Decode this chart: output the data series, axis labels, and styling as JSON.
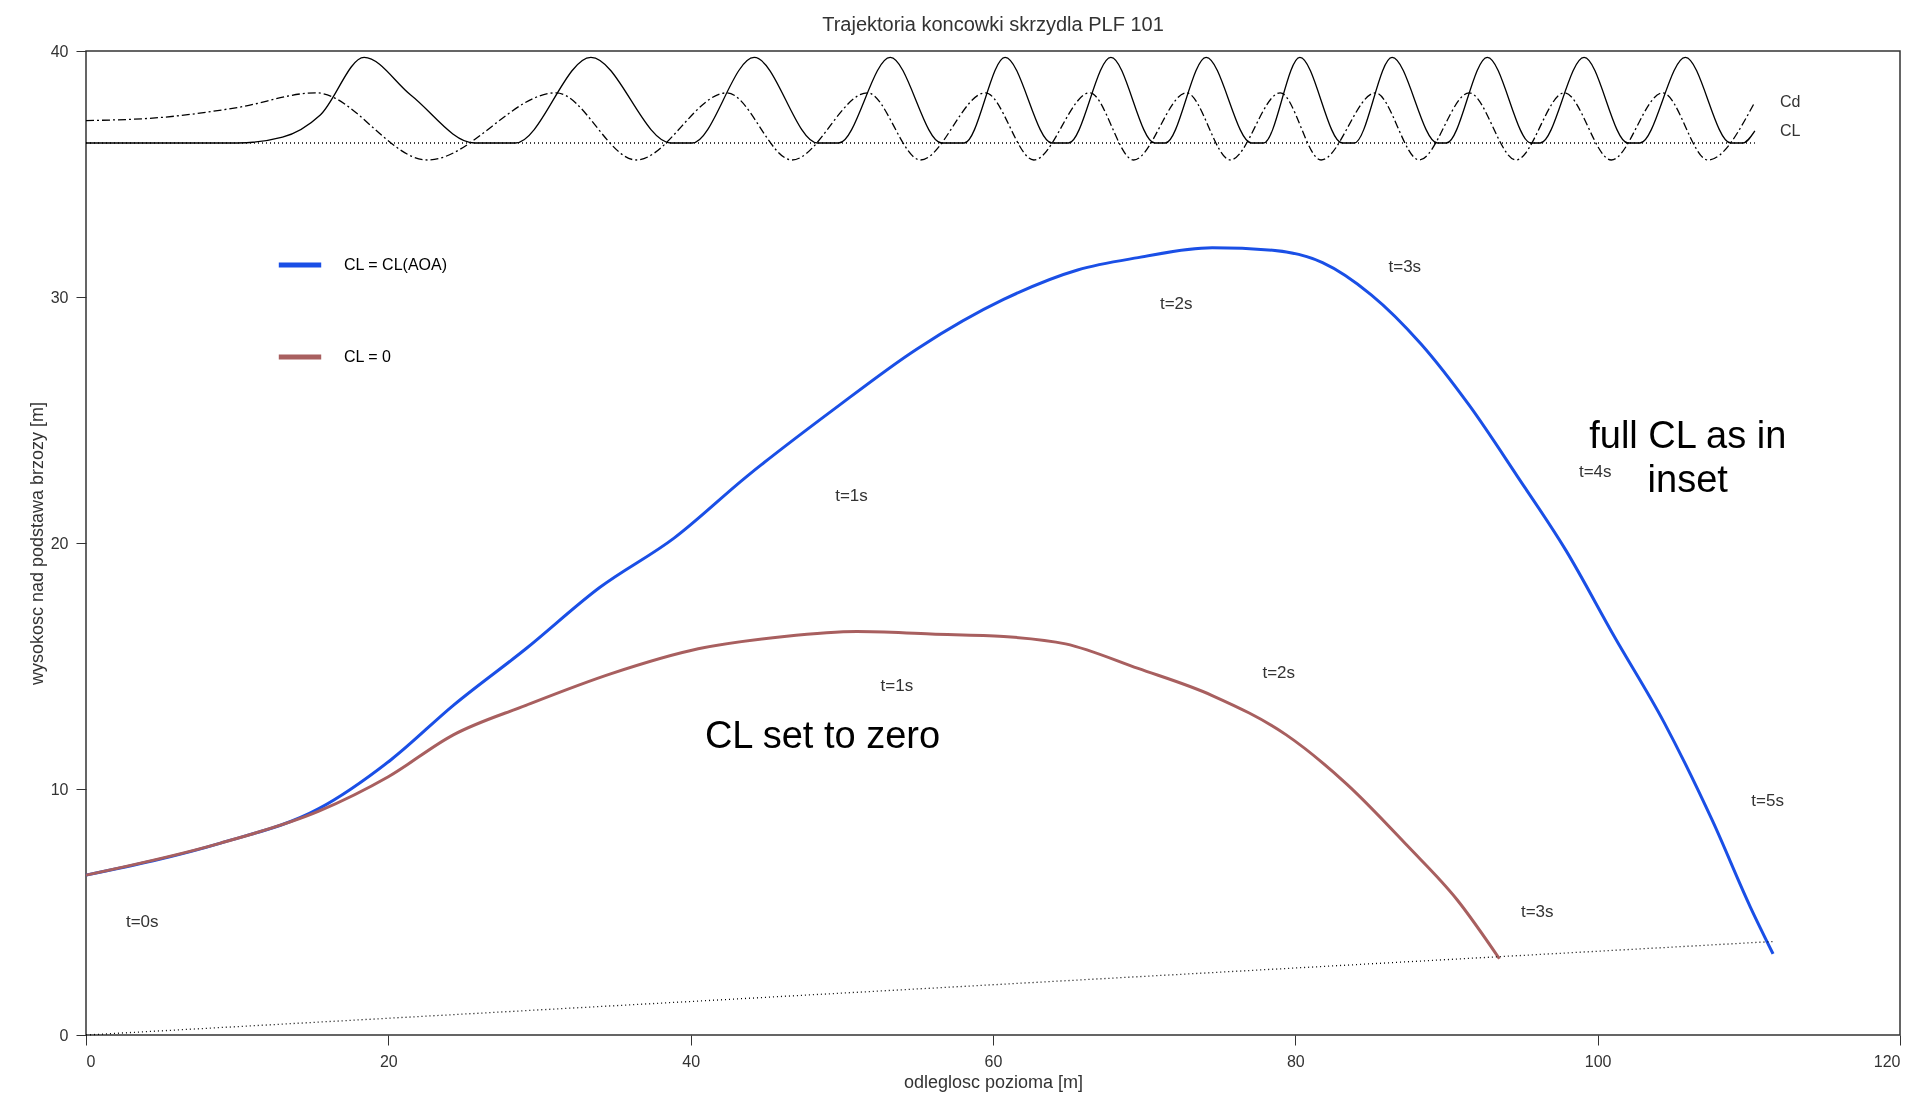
{
  "chart_data": {
    "type": "line",
    "title": "Trajektoria koncowki skrzydla PLF 101",
    "xlabel": "odleglosc pozioma [m]",
    "ylabel": "wysokosc nad podstawa brzozy [m]",
    "xlim": [
      0,
      120
    ],
    "ylim": [
      0,
      40
    ],
    "xticks": [
      0,
      20,
      40,
      60,
      80,
      100,
      120
    ],
    "yticks": [
      0,
      10,
      20,
      30,
      40
    ],
    "legend": "top left",
    "series": [
      {
        "name": "CL = CL(AOA)",
        "color": "#1a4fe6",
        "x": [
          0,
          8.9,
          15.4,
          20.2,
          24.3,
          29.1,
          34,
          38.9,
          43.7,
          49.4,
          55,
          60.7,
          65.6,
          69.6,
          74.5,
          78.5,
          81.8,
          85,
          88.3,
          91.5,
          94.7,
          97.9,
          101.1,
          104.4,
          107.6,
          110.1,
          111.6
        ],
        "values": [
          6.5,
          7.8,
          9.2,
          11.2,
          13.4,
          15.7,
          18.2,
          20.2,
          22.7,
          25.4,
          27.9,
          29.9,
          31.1,
          31.6,
          32,
          31.9,
          31.4,
          30.1,
          28.1,
          25.6,
          22.7,
          19.7,
          16.2,
          12.7,
          8.7,
          5.2,
          3.3
        ]
      },
      {
        "name": "CL = 0",
        "color": "#a85f5f",
        "x": [
          0,
          8.9,
          15.4,
          20,
          24.3,
          29.1,
          34.8,
          40.5,
          46.2,
          51,
          55.9,
          60.7,
          64.8,
          69.6,
          74.5,
          79.4,
          83.4,
          87.4,
          90.7,
          93.5
        ],
        "values": [
          6.5,
          7.8,
          9.1,
          10.5,
          12.2,
          13.4,
          14.7,
          15.7,
          16.2,
          16.4,
          16.3,
          16.2,
          15.9,
          14.9,
          13.8,
          12.2,
          10.2,
          7.7,
          5.5,
          3.1
        ]
      },
      {
        "name": "CL",
        "type": "line",
        "color": "#000000",
        "line_style": "solid",
        "x": [
          0,
          10,
          13,
          15.5,
          18.4,
          21.5,
          25.7,
          28.4,
          33.4,
          38.7,
          40.1,
          44.2,
          48.4,
          49.8,
          53.2,
          56.6,
          58.1,
          60.8,
          63.9,
          65,
          67.8,
          70.7,
          71.4,
          74.1,
          77.1,
          77.9,
          80.3,
          83.1,
          83.9,
          86.4,
          89.4,
          90,
          92.7,
          95.6,
          96.2,
          99.1,
          102,
          102.8,
          105.8,
          108.8,
          109.6,
          110.4
        ],
        "values": [
          36.26,
          36.26,
          36.5,
          37.4,
          39.74,
          38.2,
          36.26,
          36.26,
          39.74,
          36.26,
          36.26,
          39.74,
          36.26,
          36.26,
          39.74,
          36.26,
          36.26,
          39.74,
          36.26,
          36.26,
          39.74,
          36.26,
          36.26,
          39.74,
          36.26,
          36.26,
          39.74,
          36.26,
          36.26,
          39.74,
          36.26,
          36.26,
          39.74,
          36.26,
          36.26,
          39.74,
          36.26,
          36.26,
          39.74,
          36.26,
          36.26,
          36.75
        ]
      },
      {
        "name": "Cd",
        "type": "line",
        "color": "#000000",
        "line_style": "dashed",
        "x": [
          0,
          5,
          10,
          15.2,
          22.6,
          31.1,
          36.4,
          42.4,
          46.7,
          51.7,
          55.2,
          59.5,
          62.7,
          66.4,
          69.3,
          72.8,
          75.7,
          79,
          81.7,
          85.3,
          88.2,
          91.5,
          94.6,
          97.8,
          100.9,
          104.3,
          107.3,
          110.4
        ],
        "values": [
          37.17,
          37.3,
          37.7,
          38.3,
          35.57,
          38.3,
          35.57,
          38.3,
          35.57,
          38.3,
          35.57,
          38.3,
          35.57,
          38.3,
          35.57,
          38.3,
          35.57,
          38.3,
          35.57,
          38.3,
          35.57,
          38.3,
          35.57,
          38.3,
          35.57,
          38.3,
          35.57,
          37.93
        ]
      },
      {
        "type": "line",
        "color": "#000000",
        "line_style": "dotted",
        "x": [
          0,
          110.4
        ],
        "values": [
          36.26,
          36.26
        ]
      },
      {
        "type": "line",
        "color": "#000000",
        "line_style": "dotted",
        "x": [
          0,
          111.6
        ],
        "values": [
          0,
          3.8
        ]
      }
    ],
    "annotations": [
      "t=0s",
      "t=1s",
      "t=2s",
      "t=3s",
      "t=4s",
      "t=5s",
      "t=1s",
      "t=2s",
      "t=3s",
      "full CL as in\ninset",
      "CL set to zero"
    ]
  }
}
